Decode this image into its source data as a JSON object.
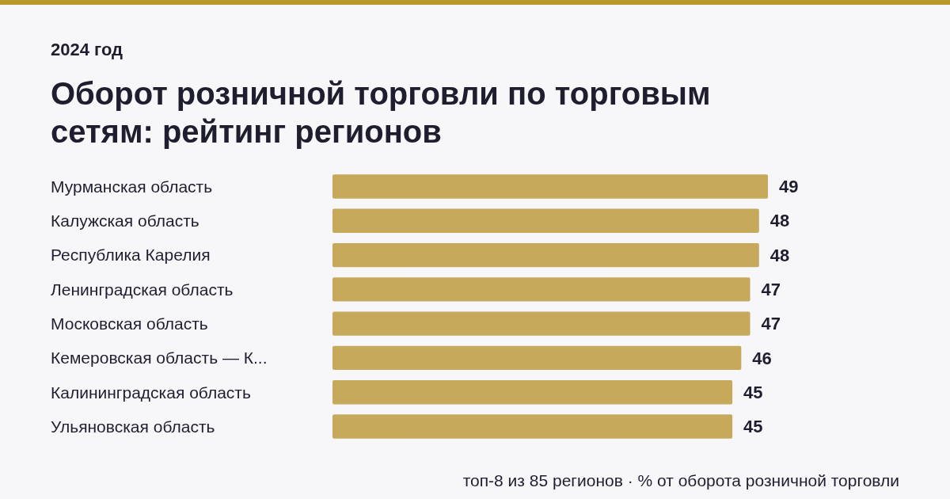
{
  "chart_data": {
    "type": "bar",
    "orientation": "horizontal",
    "subtitle": "2024 год",
    "title": "Оборот розничной торговли по торговым сетям: рейтинг регионов",
    "categories": [
      "Мурманская область",
      "Калужская область",
      "Республика Карелия",
      "Ленинградская область",
      "Московская область",
      "Кемеровская область — К...",
      "Калининградская область",
      "Ульяновская область"
    ],
    "values": [
      49,
      48,
      48,
      47,
      47,
      46,
      45,
      45
    ],
    "color": "#c6a95b",
    "data_labels": true,
    "annotations": [
      "топ-8 из 85 регионов · % от оборота розничной торговли"
    ]
  }
}
